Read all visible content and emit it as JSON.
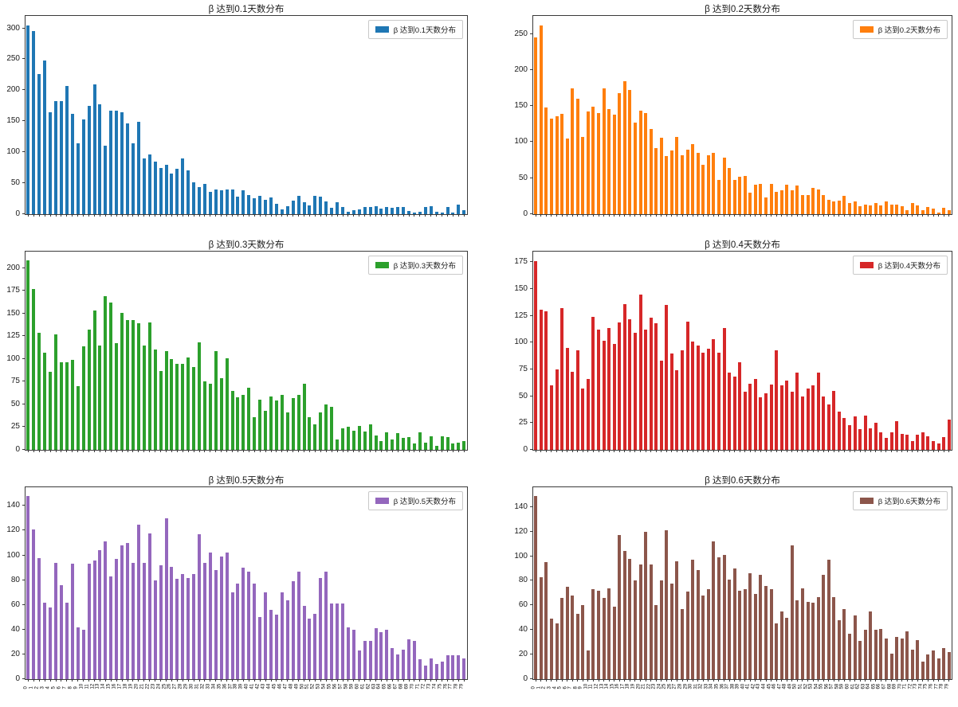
{
  "figure": {
    "background": "#ffffff",
    "layout": "2 columns x 3 rows of bar subplots"
  },
  "x_labels": [
    0,
    1,
    2,
    3,
    4,
    5,
    6,
    7,
    8,
    9,
    10,
    11,
    12,
    13,
    14,
    15,
    16,
    17,
    18,
    19,
    20,
    21,
    22,
    23,
    24,
    25,
    26,
    27,
    28,
    29,
    30,
    31,
    32,
    33,
    34,
    35,
    36,
    37,
    38,
    39,
    40,
    41,
    42,
    43,
    44,
    45,
    46,
    47,
    48,
    49,
    50,
    51,
    52,
    53,
    54,
    55,
    56,
    57,
    58,
    59,
    60,
    61,
    62,
    63,
    64,
    65,
    66,
    67,
    68,
    69,
    70,
    71,
    72,
    73,
    74,
    75,
    76,
    77,
    78,
    79
  ],
  "chart_data": [
    {
      "type": "bar",
      "title": "β 达到0.1天数分布",
      "legend": "β 达到0.1天数分布",
      "color": "#1f77b4",
      "ylim": [
        0,
        320
      ],
      "yticks": [
        0,
        50,
        100,
        150,
        200,
        250,
        300
      ],
      "grid": false,
      "legend_position": "upper right",
      "show_x_tick_labels": false,
      "values": [
        305,
        296,
        226,
        248,
        164,
        182,
        182,
        207,
        162,
        115,
        153,
        175,
        210,
        177,
        110,
        167,
        167,
        164,
        147,
        115,
        149,
        90,
        96,
        85,
        74,
        80,
        66,
        73,
        90,
        71,
        52,
        44,
        49,
        36,
        40,
        39,
        40,
        40,
        28,
        39,
        31,
        26,
        29,
        23,
        27,
        17,
        8,
        13,
        22,
        30,
        19,
        14,
        29,
        28,
        20,
        10,
        19,
        12,
        4,
        7,
        8,
        11,
        11,
        13,
        9,
        12,
        10,
        11,
        12,
        5,
        3,
        4,
        11,
        13,
        4,
        3,
        11,
        2,
        15,
        6
      ]
    },
    {
      "type": "bar",
      "title": "β 达到0.2天数分布",
      "legend": "β 达到0.2天数分布",
      "color": "#ff7f0e",
      "ylim": [
        0,
        275
      ],
      "yticks": [
        0,
        50,
        100,
        150,
        200,
        250
      ],
      "grid": false,
      "legend_position": "upper right",
      "show_x_tick_labels": false,
      "values": [
        245,
        262,
        148,
        133,
        136,
        139,
        105,
        174,
        160,
        107,
        143,
        149,
        140,
        174,
        146,
        138,
        168,
        185,
        172,
        127,
        144,
        140,
        118,
        92,
        106,
        81,
        88,
        107,
        82,
        89,
        97,
        85,
        69,
        82,
        85,
        48,
        78,
        64,
        48,
        52,
        53,
        30,
        41,
        42,
        23,
        42,
        31,
        33,
        41,
        33,
        40,
        26,
        26,
        37,
        34,
        26,
        20,
        18,
        19,
        25,
        15,
        18,
        11,
        13,
        12,
        16,
        12,
        18,
        13,
        13,
        11,
        5,
        16,
        12,
        6,
        10,
        8,
        2,
        9,
        6
      ]
    },
    {
      "type": "bar",
      "title": "β 达到0.3天数分布",
      "legend": "β 达到0.3天数分布",
      "color": "#2ca02c",
      "ylim": [
        0,
        218
      ],
      "yticks": [
        0,
        25,
        50,
        75,
        100,
        125,
        150,
        175,
        200
      ],
      "grid": false,
      "legend_position": "upper right",
      "show_x_tick_labels": false,
      "values": [
        208,
        177,
        129,
        107,
        86,
        127,
        96,
        96,
        99,
        70,
        114,
        132,
        153,
        115,
        169,
        162,
        117,
        151,
        143,
        143,
        139,
        115,
        140,
        110,
        87,
        109,
        100,
        95,
        95,
        102,
        91,
        118,
        75,
        73,
        109,
        79,
        101,
        65,
        58,
        60,
        68,
        36,
        55,
        43,
        59,
        54,
        60,
        41,
        57,
        60,
        73,
        36,
        28,
        41,
        50,
        47,
        11,
        24,
        25,
        21,
        26,
        20,
        28,
        16,
        10,
        19,
        11,
        18,
        13,
        14,
        7,
        19,
        8,
        15,
        4,
        15,
        14,
        7,
        8,
        10
      ]
    },
    {
      "type": "bar",
      "title": "β 达到0.4天数分布",
      "legend": "β 达到0.4天数分布",
      "color": "#d62728",
      "ylim": [
        0,
        185
      ],
      "yticks": [
        0,
        25,
        50,
        75,
        100,
        125,
        150,
        175
      ],
      "grid": false,
      "legend_position": "upper right",
      "show_x_tick_labels": false,
      "values": [
        176,
        131,
        129,
        60,
        75,
        132,
        95,
        73,
        93,
        57,
        66,
        124,
        112,
        102,
        114,
        99,
        119,
        136,
        122,
        109,
        145,
        112,
        123,
        118,
        83,
        135,
        90,
        74,
        93,
        120,
        101,
        97,
        91,
        94,
        103,
        91,
        114,
        72,
        68,
        82,
        54,
        62,
        66,
        49,
        53,
        61,
        93,
        60,
        65,
        54,
        72,
        50,
        57,
        60,
        72,
        50,
        42,
        55,
        36,
        30,
        23,
        31,
        19,
        32,
        20,
        25,
        16,
        11,
        16,
        27,
        15,
        14,
        8,
        14,
        16,
        13,
        8,
        6,
        12,
        28
      ]
    },
    {
      "type": "bar",
      "title": "β 达到0.5天数分布",
      "legend": "β 达到0.5天数分布",
      "color": "#9467bd",
      "ylim": [
        0,
        155
      ],
      "yticks": [
        0,
        20,
        40,
        60,
        80,
        100,
        120,
        140
      ],
      "grid": false,
      "legend_position": "upper right",
      "show_x_tick_labels": true,
      "values": [
        148,
        121,
        98,
        62,
        58,
        94,
        76,
        62,
        93,
        42,
        40,
        93,
        96,
        104,
        111,
        83,
        97,
        108,
        110,
        94,
        125,
        94,
        118,
        80,
        92,
        130,
        91,
        81,
        85,
        82,
        85,
        117,
        94,
        102,
        88,
        99,
        102,
        70,
        77,
        90,
        87,
        77,
        50,
        70,
        56,
        52,
        70,
        64,
        79,
        87,
        59,
        49,
        53,
        82,
        87,
        61,
        61,
        61,
        42,
        40,
        23,
        31,
        31,
        41,
        38,
        40,
        25,
        20,
        24,
        32,
        31,
        16,
        11,
        17,
        12,
        14,
        19,
        19,
        19,
        17
      ]
    },
    {
      "type": "bar",
      "title": "β 达到0.6天数分布",
      "legend": "β 达到0.6天数分布",
      "color": "#8c564b",
      "ylim": [
        0,
        156
      ],
      "yticks": [
        0,
        20,
        40,
        60,
        80,
        100,
        120,
        140
      ],
      "grid": false,
      "legend_position": "upper right",
      "show_x_tick_labels": true,
      "values": [
        149,
        83,
        95,
        49,
        45,
        66,
        75,
        68,
        53,
        60,
        23,
        73,
        72,
        66,
        74,
        59,
        117,
        104,
        98,
        80,
        93,
        120,
        93,
        60,
        80,
        121,
        78,
        96,
        57,
        71,
        97,
        89,
        68,
        73,
        112,
        99,
        101,
        81,
        90,
        72,
        73,
        86,
        69,
        85,
        76,
        73,
        45,
        55,
        50,
        109,
        64,
        74,
        63,
        62,
        67,
        85,
        97,
        67,
        48,
        57,
        37,
        52,
        31,
        40,
        55,
        40,
        41,
        33,
        21,
        34,
        33,
        39,
        24,
        32,
        14,
        20,
        23,
        17,
        25,
        22
      ]
    }
  ]
}
